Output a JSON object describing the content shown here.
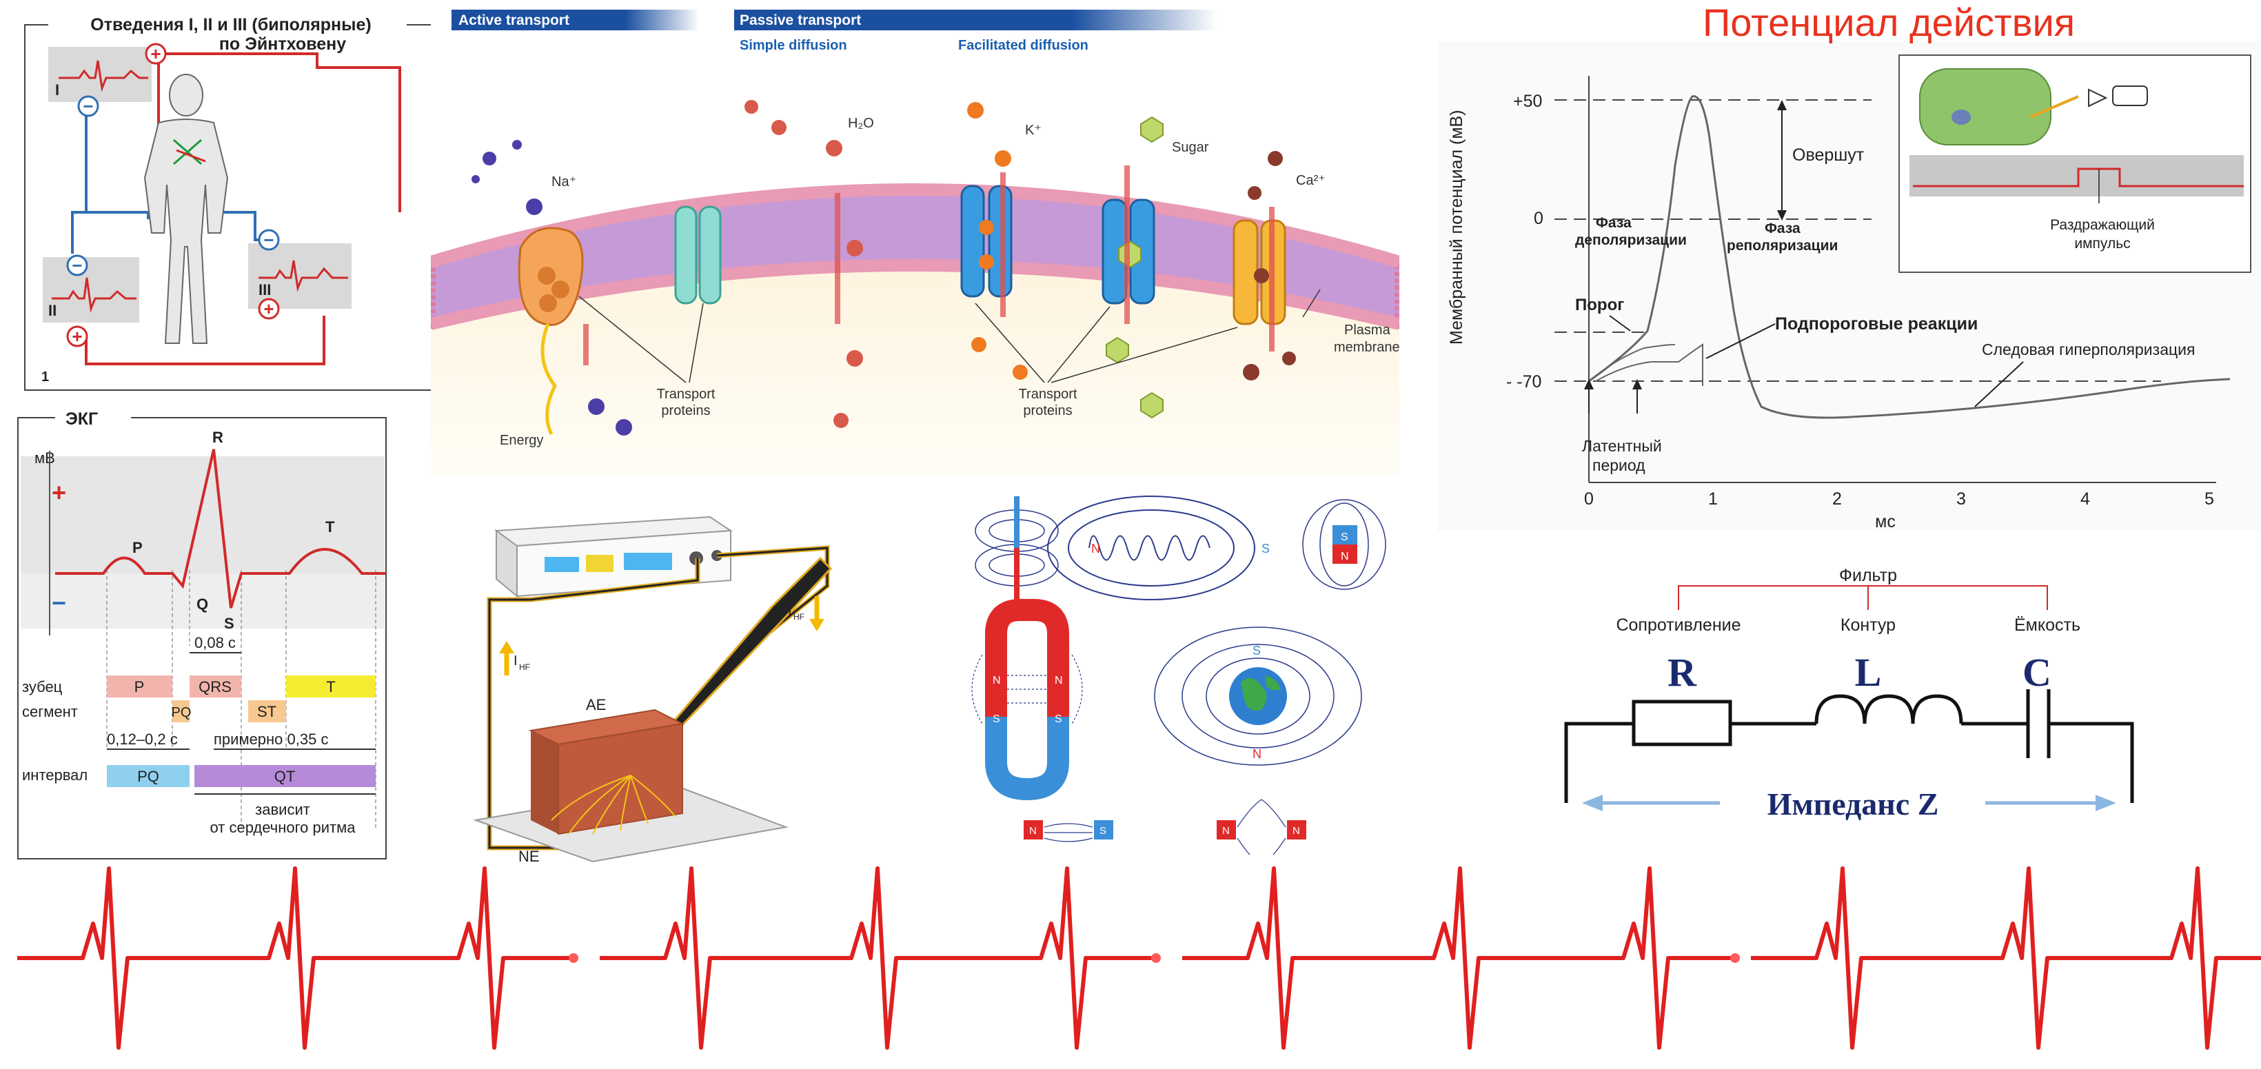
{
  "einthoven": {
    "title": "Отведения I, II и III (биполярные)",
    "subtitle": "по Эйнтховену",
    "lead1": "I",
    "lead2": "II",
    "lead3": "III",
    "plus": "+",
    "minus": "−",
    "figure_number": "1"
  },
  "ecg": {
    "title": "ЭКГ",
    "mv": "мВ",
    "plus": "+",
    "minus": "−",
    "P": "P",
    "Q": "Q",
    "R": "R",
    "S": "S",
    "T": "T",
    "qrs_duration": "0,08 с",
    "row_wave": "зубец",
    "row_segment": "сегмент",
    "row_interval": "интервал",
    "wave_P": "P",
    "wave_QRS": "QRS",
    "wave_T": "T",
    "seg_PQ": "PQ",
    "seg_ST": "ST",
    "int_PQ": "PQ",
    "int_QT": "QT",
    "pq_duration": "0,12–0,2 с",
    "qt_duration": "примерно 0,35 с",
    "depends_1": "зависит",
    "depends_2": "от сердечного ритма"
  },
  "membrane": {
    "active_transport": "Active transport",
    "passive_transport": "Passive transport",
    "simple_diffusion": "Simple diffusion",
    "facilitated_diffusion": "Facilitated diffusion",
    "na": "Na⁺",
    "h2o": "H₂O",
    "k": "K⁺",
    "sugar": "Sugar",
    "ca": "Ca²⁺",
    "energy": "Energy",
    "transport_proteins_1a": "Transport",
    "transport_proteins_1b": "proteins",
    "transport_proteins_2a": "Transport",
    "transport_proteins_2b": "proteins",
    "plasma_1": "Plasma",
    "plasma_2": "membrane"
  },
  "electrosurgery": {
    "ihf_top": "I",
    "ihf_sub": "HF",
    "ae": "AE",
    "ne": "NE"
  },
  "magnets": {
    "n": "N",
    "s": "S"
  },
  "action_potential": {
    "title": "Потенциал действия",
    "ylabel": "Мембранный потенциал (мВ)",
    "xlabel": "мс",
    "yticks": [
      "+50",
      "0",
      "- -70"
    ],
    "xticks": [
      "0",
      "1",
      "2",
      "3",
      "4",
      "5"
    ],
    "overshoot": "Овершут",
    "depol_1": "Фаза",
    "depol_2": "деполяризации",
    "repol_1": "Фаза",
    "repol_2": "реполяризации",
    "threshold": "Порог",
    "subthreshold": "Подпороговые реакции",
    "trace_hyper": "Следовая гиперполяризация",
    "latent_1": "Латентный",
    "latent_2": "период",
    "stimulus_1": "Раздражающий",
    "stimulus_2": "импульс"
  },
  "impedance": {
    "filter": "Фильтр",
    "resistance": "Сопротивление",
    "circuit": "Контур",
    "capacitance": "Ёмкость",
    "R": "R",
    "L": "L",
    "C": "C",
    "impedance": "Импеданс Z"
  },
  "colors": {
    "ecg_red": "#e02020",
    "ap_title": "#e8321e",
    "blue_header": "#1b4fa0",
    "membrane_pink": "#e99ab4",
    "impedance_navy": "#1a2a6c"
  }
}
